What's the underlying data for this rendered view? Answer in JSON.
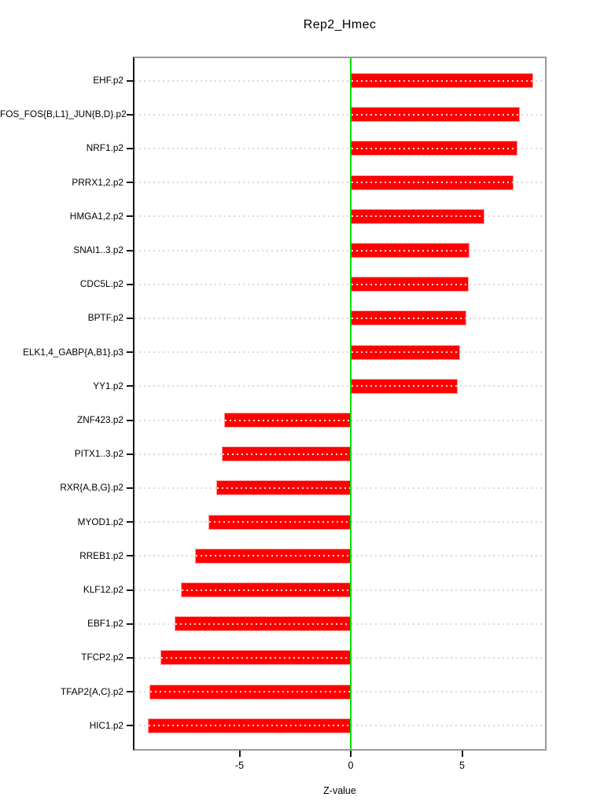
{
  "window": {
    "title": "Rep2_Hmec"
  },
  "colors": {
    "bar": "#ff0000",
    "bar_border": "#ff9c9c",
    "bar_grid_dots": "#ffd9d9",
    "zero_line": "#00dc00",
    "grid_dots": "#d8d8d8",
    "box_border": "#9b9b9b",
    "axis": "#161616",
    "text": "#000000"
  },
  "chart_data": {
    "type": "bar",
    "orientation": "horizontal",
    "title": "Rep2_Hmec",
    "xlabel": "Z-value",
    "ylabel": "",
    "categories": [
      "EHF.p2",
      "FOS_FOS{B,L1}_JUN{B,D}.p2",
      "NRF1.p2",
      "PRRX1,2.p2",
      "HMGA1,2.p2",
      "SNAI1..3.p2",
      "CDC5L.p2",
      "BPTF.p2",
      "ELK1,4_GABP{A,B1}.p3",
      "YY1.p2",
      "ZNF423.p2",
      "PITX1..3.p2",
      "RXR{A,B,G}.p2",
      "MYOD1.p2",
      "RREB1.p2",
      "KLF12.p2",
      "EBF1.p2",
      "TFCP2.p2",
      "TFAP2{A,C}.p2",
      "HIC1.p2"
    ],
    "values": [
      8.2,
      7.6,
      7.5,
      7.3,
      6.0,
      5.35,
      5.3,
      5.2,
      4.9,
      4.8,
      -5.7,
      -5.8,
      -6.05,
      -6.4,
      -7.0,
      -7.65,
      -7.9,
      -8.55,
      -9.05,
      -9.1
    ],
    "xlim": [
      -9.8,
      8.8
    ],
    "x_ticks": [
      -5,
      0,
      5
    ],
    "x_tick_labels": [
      "-5",
      "0",
      "5"
    ],
    "grid": "dotted horizontal gridline per bar",
    "zero_reference_line": 0,
    "legend": null
  }
}
